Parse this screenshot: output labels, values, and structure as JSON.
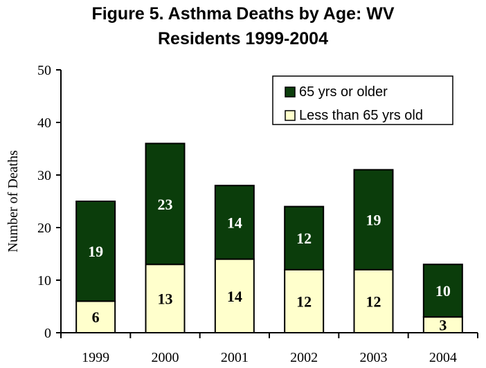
{
  "chart_data": {
    "type": "bar",
    "stacked": true,
    "title_lines": [
      "Figure 5. Asthma Deaths by Age: WV",
      "Residents 1999-2004"
    ],
    "xlabel": "",
    "ylabel": "Number of Deaths",
    "categories": [
      "1999",
      "2000",
      "2001",
      "2002",
      "2003",
      "2004"
    ],
    "ylim": [
      0,
      50
    ],
    "yticks": [
      0,
      10,
      20,
      30,
      40,
      50
    ],
    "series": [
      {
        "name": "Less than 65 yrs old",
        "values": [
          6,
          13,
          14,
          12,
          12,
          3
        ],
        "color": "#ffffcc",
        "label_color": "#000000"
      },
      {
        "name": "65 yrs or older",
        "values": [
          19,
          23,
          14,
          12,
          19,
          10
        ],
        "color": "#0b3d0b",
        "label_color": "#ffffff"
      }
    ],
    "legend_order": [
      1,
      0
    ],
    "legend_position": "top-right",
    "grid": false
  }
}
